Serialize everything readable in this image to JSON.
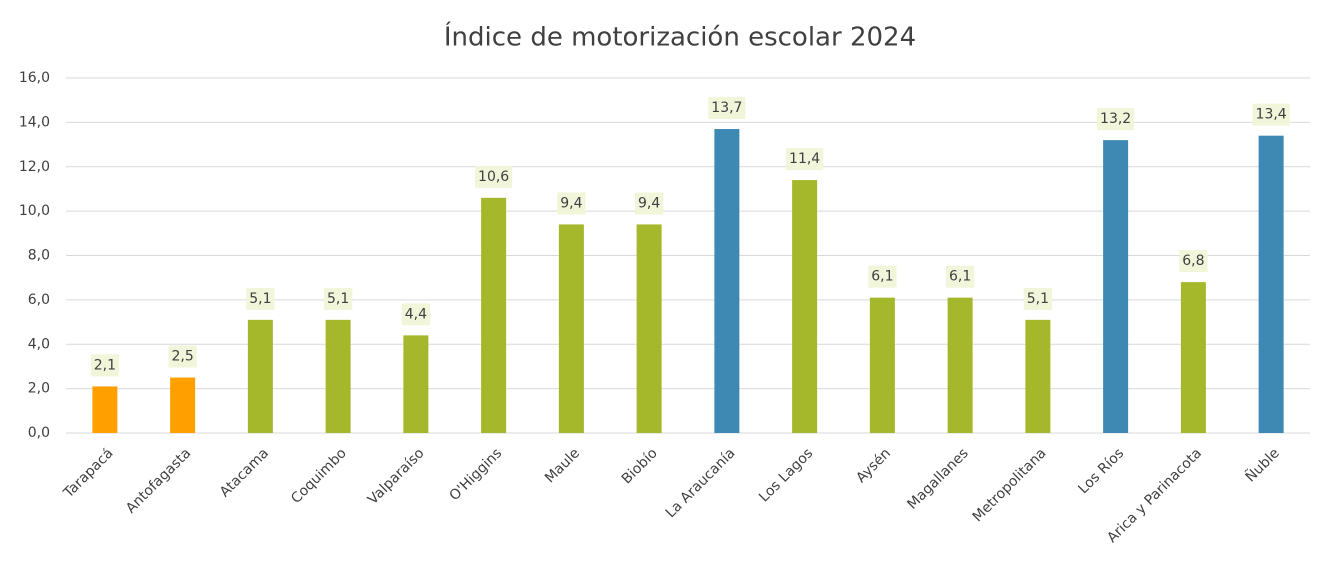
{
  "chart_data": {
    "type": "bar",
    "title": "Índice de motorización escolar 2024",
    "categories": [
      "Tarapacá",
      "Antofagasta",
      "Atacama",
      "Coquimbo",
      "Valparaíso",
      "O'Higgins",
      "Maule",
      "Biobío",
      "La Araucanía",
      "Los Lagos",
      "Aysén",
      "Magallanes",
      "Metropolitana",
      "Los Ríos",
      "Arica y Parinacota",
      "Ñuble"
    ],
    "values": [
      2.1,
      2.5,
      5.1,
      5.1,
      4.4,
      10.6,
      9.4,
      9.4,
      13.7,
      11.4,
      6.1,
      6.1,
      5.1,
      13.2,
      6.8,
      13.4
    ],
    "value_labels": [
      "2,1",
      "2,5",
      "5,1",
      "5,1",
      "4,4",
      "10,6",
      "9,4",
      "9,4",
      "13,7",
      "11,4",
      "6,1",
      "6,1",
      "5,1",
      "13,2",
      "6,8",
      "13,4"
    ],
    "colors": [
      "#ffa000",
      "#ffa000",
      "#a5b72a",
      "#a5b72a",
      "#a5b72a",
      "#a5b72a",
      "#a5b72a",
      "#a5b72a",
      "#3e89b3",
      "#a5b72a",
      "#a5b72a",
      "#a5b72a",
      "#a5b72a",
      "#3e89b3",
      "#a5b72a",
      "#3e89b3"
    ],
    "ylim": [
      0,
      16
    ],
    "yticks": [
      {
        "value": 0,
        "label": "0,0"
      },
      {
        "value": 2,
        "label": "2,0"
      },
      {
        "value": 4,
        "label": "4,0"
      },
      {
        "value": 6,
        "label": "6,0"
      },
      {
        "value": 8,
        "label": "8,0"
      },
      {
        "value": 10,
        "label": "10,0"
      },
      {
        "value": 12,
        "label": "12,0"
      },
      {
        "value": 14,
        "label": "14,0"
      },
      {
        "value": 16,
        "label": "16,0"
      }
    ],
    "grid": true
  }
}
